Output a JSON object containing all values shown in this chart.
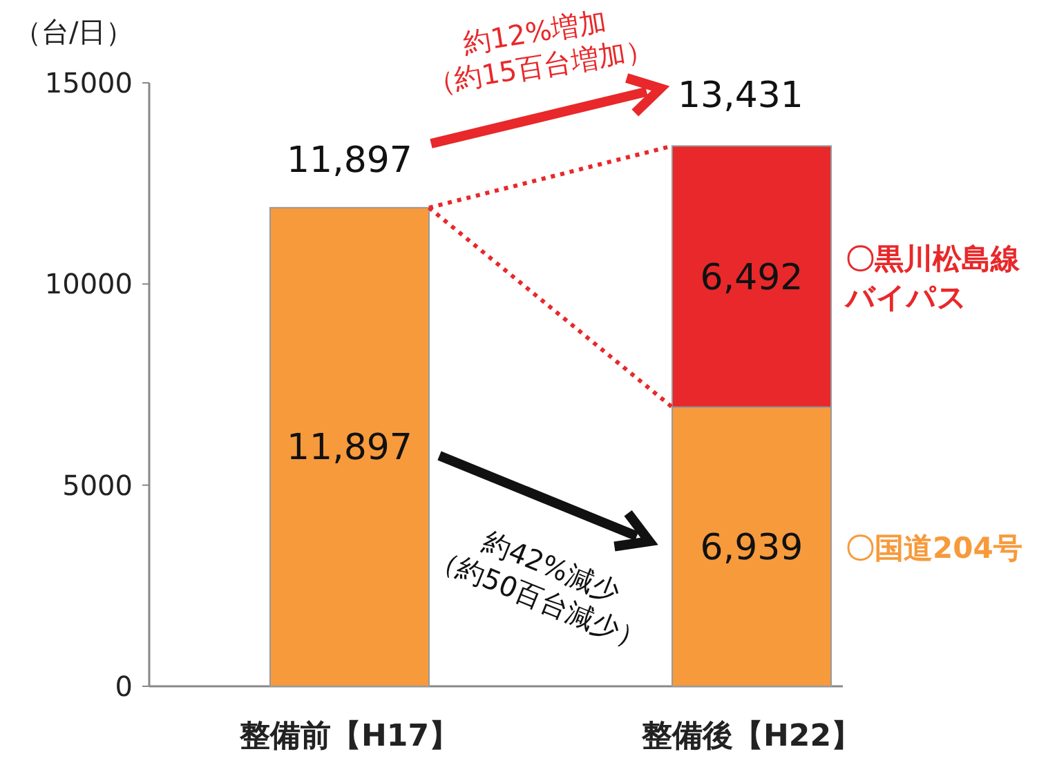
{
  "chart_data": {
    "type": "bar",
    "stacked": true,
    "ylabel": "（台/日）",
    "categories": [
      "整備前【H17】",
      "整備後【H22】"
    ],
    "series": [
      {
        "name": "〇国道204号",
        "color": "#f79a3c",
        "values": [
          11897,
          6939
        ],
        "value_labels": [
          "11,897",
          "6,939"
        ]
      },
      {
        "name": "〇黒川松島線バイパス",
        "color": "#e8282a",
        "values": [
          null,
          6492
        ],
        "value_labels": [
          null,
          "6,492"
        ]
      }
    ],
    "totals": [
      "11,897",
      "13,431"
    ],
    "ylim": [
      0,
      15000
    ],
    "yticks": [
      0,
      5000,
      10000,
      15000
    ],
    "grid": false,
    "legend": "right",
    "annotations": [
      "約12%増加\n（約15百台増加）",
      "約42%減少\n（約50百台減少）"
    ]
  }
}
